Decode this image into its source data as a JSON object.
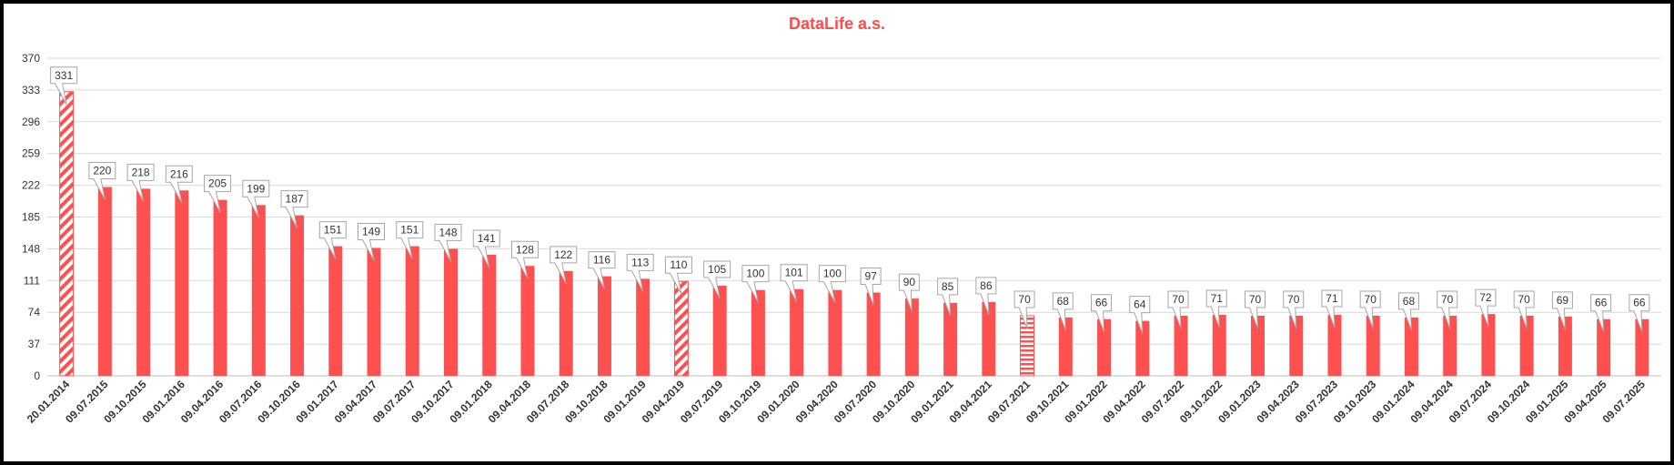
{
  "chart_data": {
    "type": "bar",
    "title": "DataLife a.s.",
    "xlabel": "",
    "ylabel": "",
    "ylim": [
      0,
      370
    ],
    "y_ticks": [
      0,
      37,
      74,
      111,
      148,
      185,
      222,
      259,
      296,
      333,
      370
    ],
    "grid": "horizontal",
    "categories": [
      "20.01.2014",
      "09.07.2015",
      "09.10.2015",
      "09.01.2016",
      "09.04.2016",
      "09.07.2016",
      "09.10.2016",
      "09.01.2017",
      "09.04.2017",
      "09.07.2017",
      "09.10.2017",
      "09.01.2018",
      "09.04.2018",
      "09.07.2018",
      "09.10.2018",
      "09.01.2019",
      "09.04.2019",
      "09.07.2019",
      "09.10.2019",
      "09.01.2020",
      "09.04.2020",
      "09.07.2020",
      "09.10.2020",
      "09.01.2021",
      "09.04.2021",
      "09.07.2021",
      "09.10.2021",
      "09.01.2022",
      "09.04.2022",
      "09.07.2022",
      "09.10.2022",
      "09.01.2023",
      "09.04.2023",
      "09.07.2023",
      "09.10.2023",
      "09.01.2024",
      "09.04.2024",
      "09.07.2024",
      "09.10.2024",
      "09.01.2025",
      "09.04.2025",
      "09.07.2025"
    ],
    "values": [
      331,
      220,
      218,
      216,
      205,
      199,
      187,
      151,
      149,
      151,
      148,
      141,
      128,
      122,
      116,
      113,
      110,
      105,
      100,
      101,
      100,
      97,
      90,
      85,
      86,
      70,
      68,
      66,
      64,
      70,
      71,
      70,
      70,
      71,
      70,
      68,
      70,
      72,
      70,
      69,
      66,
      66
    ],
    "bar_patterns": [
      "diagonal",
      "solid",
      "solid",
      "solid",
      "solid",
      "solid",
      "solid",
      "solid",
      "solid",
      "solid",
      "solid",
      "solid",
      "solid",
      "solid",
      "solid",
      "solid",
      "diagonal",
      "solid",
      "solid",
      "solid",
      "solid",
      "solid",
      "solid",
      "solid",
      "solid",
      "horizontal",
      "solid",
      "solid",
      "solid",
      "solid",
      "solid",
      "solid",
      "solid",
      "solid",
      "solid",
      "solid",
      "solid",
      "solid",
      "solid",
      "solid",
      "solid",
      "solid"
    ],
    "colors": {
      "bar": "#ff5050",
      "title": "#ff4b4b",
      "grid": "#d9d9d9",
      "axis": "#bfbfbf"
    }
  }
}
